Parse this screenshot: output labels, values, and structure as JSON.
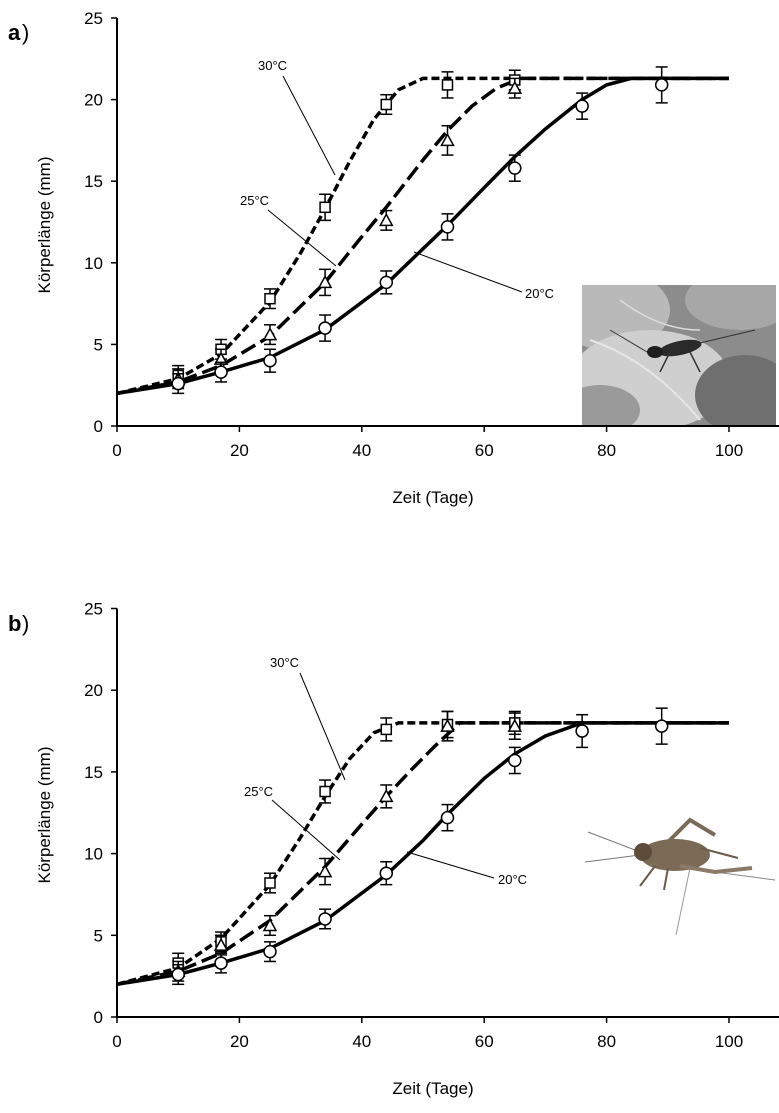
{
  "chart_data": [
    {
      "panel": "a",
      "type": "line",
      "xlabel": "Zeit (Tage)",
      "ylabel": "Körperlänge (mm)",
      "xlim": [
        0,
        110
      ],
      "ylim": [
        0,
        25
      ],
      "xticks": [
        0,
        20,
        40,
        60,
        80,
        100
      ],
      "yticks": [
        0,
        5,
        10,
        15,
        20,
        25
      ],
      "plateau": 21.3,
      "series": [
        {
          "name": "30°C",
          "marker": "square",
          "dash": "short",
          "x": [
            10,
            17,
            25,
            34,
            44,
            54,
            65
          ],
          "y": [
            3.1,
            4.7,
            7.8,
            13.4,
            19.7,
            20.9,
            21.2
          ],
          "err": [
            0.6,
            0.6,
            0.6,
            0.8,
            0.6,
            0.8,
            0.6
          ],
          "curve_x": [
            0,
            10,
            17,
            25,
            30,
            34,
            38,
            42,
            46,
            50,
            100
          ],
          "curve_y": [
            2.0,
            2.9,
            4.4,
            7.6,
            10.6,
            13.3,
            16.2,
            18.8,
            20.6,
            21.3,
            21.3
          ]
        },
        {
          "name": "25°C",
          "marker": "triangle",
          "dash": "long",
          "x": [
            10,
            17,
            25,
            34,
            44,
            54,
            65
          ],
          "y": [
            2.9,
            4.1,
            5.6,
            8.8,
            12.6,
            17.5,
            20.7
          ],
          "err": [
            0.6,
            0.6,
            0.6,
            0.8,
            0.6,
            0.9,
            0.6
          ],
          "curve_x": [
            0,
            10,
            17,
            25,
            34,
            40,
            44,
            50,
            54,
            58,
            62,
            66,
            100
          ],
          "curve_y": [
            2.0,
            2.7,
            3.7,
            5.5,
            8.8,
            11.6,
            13.4,
            16.3,
            18.1,
            19.6,
            20.7,
            21.3,
            21.3
          ]
        },
        {
          "name": "20°C",
          "marker": "circle",
          "dash": "solid",
          "x": [
            10,
            17,
            25,
            34,
            44,
            54,
            65,
            76,
            89
          ],
          "y": [
            2.6,
            3.3,
            4.0,
            6.0,
            8.8,
            12.2,
            15.8,
            19.6,
            20.9
          ],
          "err": [
            0.6,
            0.6,
            0.7,
            0.8,
            0.7,
            0.8,
            0.8,
            0.8,
            1.1
          ],
          "curve_x": [
            0,
            10,
            17,
            25,
            34,
            44,
            54,
            60,
            65,
            70,
            76,
            80,
            84,
            100
          ],
          "curve_y": [
            2.0,
            2.6,
            3.3,
            4.2,
            5.9,
            8.7,
            12.3,
            14.6,
            16.5,
            18.2,
            20.0,
            20.9,
            21.3,
            21.3
          ]
        }
      ]
    },
    {
      "panel": "b",
      "type": "line",
      "xlabel": "Zeit (Tage)",
      "ylabel": "Körperlänge (mm)",
      "xlim": [
        0,
        110
      ],
      "ylim": [
        0,
        25
      ],
      "xticks": [
        0,
        20,
        40,
        60,
        80,
        100
      ],
      "yticks": [
        0,
        5,
        10,
        15,
        20,
        25
      ],
      "plateau": 18.0,
      "series": [
        {
          "name": "30°C",
          "marker": "square",
          "dash": "short",
          "x": [
            10,
            17,
            25,
            34,
            44,
            54,
            65
          ],
          "y": [
            3.3,
            4.6,
            8.2,
            13.8,
            17.6,
            17.9,
            18.0
          ],
          "err": [
            0.6,
            0.6,
            0.6,
            0.7,
            0.7,
            0.8,
            0.7
          ],
          "curve_x": [
            0,
            10,
            17,
            25,
            30,
            34,
            38,
            42,
            46,
            100
          ],
          "curve_y": [
            2.0,
            3.0,
            4.8,
            8.1,
            11.0,
            13.5,
            15.8,
            17.4,
            18.0,
            18.0
          ]
        },
        {
          "name": "25°C",
          "marker": "triangle",
          "dash": "long",
          "x": [
            10,
            17,
            25,
            34,
            44,
            54,
            65
          ],
          "y": [
            2.8,
            4.4,
            5.6,
            8.9,
            13.5,
            17.8,
            17.8
          ],
          "err": [
            0.6,
            0.6,
            0.6,
            0.8,
            0.7,
            0.9,
            0.8
          ],
          "curve_x": [
            0,
            10,
            17,
            25,
            34,
            40,
            44,
            48,
            52,
            56,
            100
          ],
          "curve_y": [
            2.0,
            2.8,
            3.9,
            5.9,
            9.2,
            11.8,
            13.5,
            15.1,
            16.6,
            18.0,
            18.0
          ]
        },
        {
          "name": "20°C",
          "marker": "circle",
          "dash": "solid",
          "x": [
            10,
            17,
            25,
            34,
            44,
            54,
            65,
            76,
            89
          ],
          "y": [
            2.6,
            3.3,
            4.0,
            6.0,
            8.8,
            12.2,
            15.7,
            17.5,
            17.8
          ],
          "err": [
            0.6,
            0.6,
            0.6,
            0.6,
            0.7,
            0.8,
            0.8,
            1.0,
            1.1
          ],
          "curve_x": [
            0,
            10,
            17,
            25,
            34,
            44,
            50,
            54,
            60,
            65,
            70,
            76,
            100
          ],
          "curve_y": [
            2.0,
            2.6,
            3.3,
            4.2,
            5.9,
            8.7,
            10.8,
            12.4,
            14.6,
            16.1,
            17.2,
            18.0,
            18.0
          ]
        }
      ]
    }
  ],
  "panels": {
    "a": {
      "letter": "a",
      "close": ")",
      "photo": "cricket-photo-on-leaf"
    },
    "b": {
      "letter": "b",
      "close": ")",
      "photo": "cricket-cutout-photo"
    }
  }
}
